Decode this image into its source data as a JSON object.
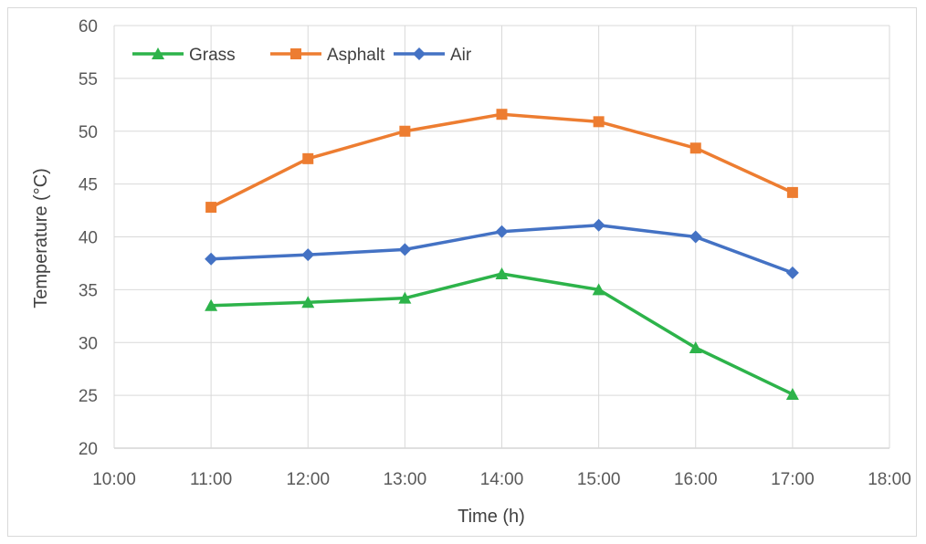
{
  "chart_data": {
    "type": "line",
    "title": "",
    "xlabel": "Time (h)",
    "ylabel": "Temperature (°C)",
    "x_ticks": [
      "10:00",
      "11:00",
      "12:00",
      "13:00",
      "14:00",
      "15:00",
      "16:00",
      "17:00",
      "18:00"
    ],
    "y_ticks": [
      "20",
      "25",
      "30",
      "35",
      "40",
      "45",
      "50",
      "55",
      "60"
    ],
    "xlim": [
      "10:00",
      "18:00"
    ],
    "ylim": [
      20,
      60
    ],
    "grid": true,
    "legend_position": "top-left",
    "x": [
      "11:00",
      "12:00",
      "13:00",
      "14:00",
      "15:00",
      "16:00",
      "17:00"
    ],
    "series": [
      {
        "name": "Grass",
        "color": "#2db34a",
        "marker": "triangle",
        "values": [
          33.5,
          33.8,
          34.2,
          36.5,
          35.0,
          29.5,
          25.1
        ]
      },
      {
        "name": "Asphalt",
        "color": "#ed7d31",
        "marker": "square",
        "values": [
          42.8,
          47.4,
          50.0,
          51.6,
          50.9,
          48.4,
          44.2
        ]
      },
      {
        "name": "Air",
        "color": "#4472c4",
        "marker": "diamond",
        "values": [
          37.9,
          38.3,
          38.8,
          40.5,
          41.1,
          40.0,
          36.6
        ]
      }
    ]
  }
}
